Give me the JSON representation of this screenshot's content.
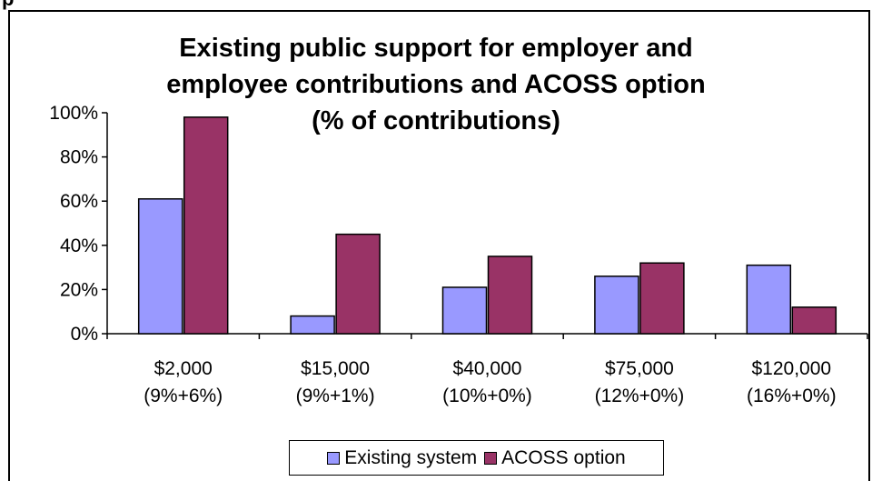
{
  "page_heading": "p",
  "chart_data": {
    "type": "bar",
    "title_lines": [
      "Existing public support for employer and",
      "employee contributions and ACOSS option",
      "(% of contributions)"
    ],
    "categories": [
      [
        "$2,000",
        "(9%+6%)"
      ],
      [
        "$15,000",
        "(9%+1%)"
      ],
      [
        "$40,000",
        "(10%+0%)"
      ],
      [
        "$75,000",
        "(12%+0%)"
      ],
      [
        "$120,000",
        "(16%+0%)"
      ]
    ],
    "series": [
      {
        "name": "Existing system",
        "color": "#9999ff",
        "values": [
          61,
          8,
          21,
          26,
          31
        ]
      },
      {
        "name": "ACOSS option",
        "color": "#993366",
        "values": [
          98,
          45,
          35,
          32,
          12
        ]
      }
    ],
    "ylim": [
      0,
      100
    ],
    "yticks": [
      0,
      20,
      40,
      60,
      80,
      100
    ],
    "ytick_format": "percent",
    "grid": false,
    "legend_position": "bottom"
  }
}
